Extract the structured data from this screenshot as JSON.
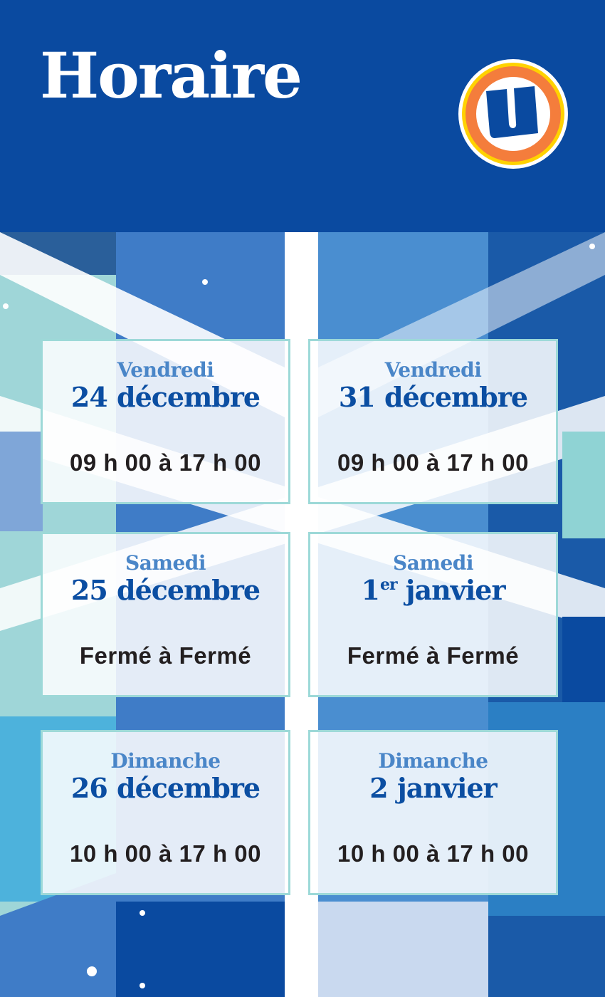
{
  "header": {
    "title": "Horaire",
    "logo_icon": "u-store-logo",
    "logo_letter": "U"
  },
  "colors": {
    "header_blue": "#0a4aa0",
    "day_blue": "#4a86c8",
    "date_blue": "#0b4ea2",
    "card_border": "#9dd9d8",
    "logo_orange": "#f47d3c",
    "logo_yellow": "#ffd200"
  },
  "schedule": [
    {
      "day": "Vendredi",
      "date_num": "24",
      "date_sup": "",
      "date_rest": " décembre",
      "hours": "09 h 00 à 17 h 00"
    },
    {
      "day": "Vendredi",
      "date_num": "31",
      "date_sup": "",
      "date_rest": " décembre",
      "hours": "09 h 00 à 17 h 00"
    },
    {
      "day": "Samedi",
      "date_num": "25",
      "date_sup": "",
      "date_rest": " décembre",
      "hours": "Fermé à Fermé"
    },
    {
      "day": "Samedi",
      "date_num": "1",
      "date_sup": "er",
      "date_rest": " janvier",
      "hours": "Fermé à Fermé"
    },
    {
      "day": "Dimanche",
      "date_num": "26",
      "date_sup": "",
      "date_rest": " décembre",
      "hours": "10 h 00 à 17 h 00"
    },
    {
      "day": "Dimanche",
      "date_num": "2",
      "date_sup": "",
      "date_rest": " janvier",
      "hours": "10 h 00 à 17 h 00"
    }
  ]
}
